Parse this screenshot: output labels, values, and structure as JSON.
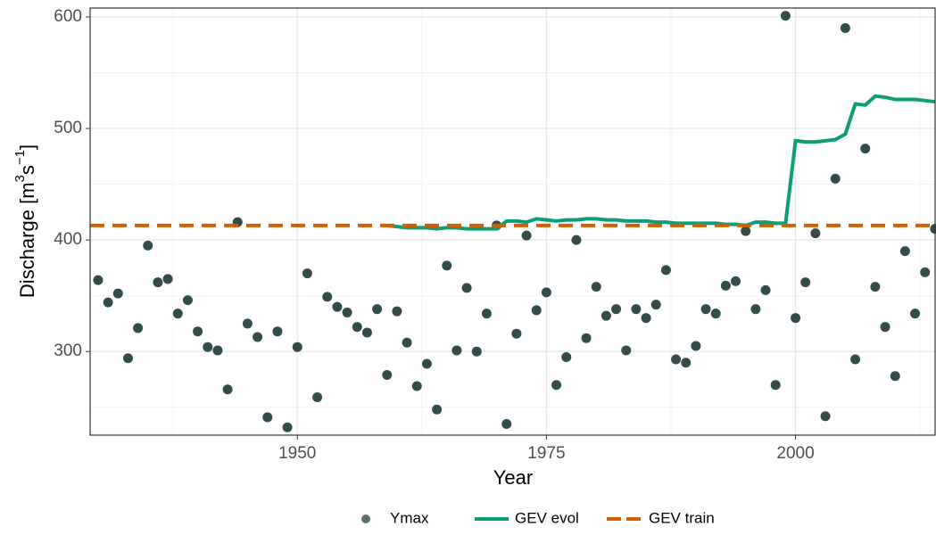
{
  "chart_data": {
    "type": "scatter_line",
    "x_label": "Year",
    "y_label": [
      "Discharge [m",
      "3",
      "s",
      "−1",
      "]"
    ],
    "xlim": [
      1929.2,
      2014.1
    ],
    "ylim": [
      225,
      608
    ],
    "xticks": [
      1950,
      1975,
      2000
    ],
    "yticks": [
      300,
      400,
      500,
      600
    ],
    "xminor": [
      1937.5,
      1962.5,
      1987.5,
      2012.5
    ],
    "yminor": [
      250,
      350,
      450,
      550
    ],
    "grid": true,
    "legend": "bottom",
    "series": [
      {
        "name": "Ymax",
        "kind": "points",
        "color": "#344b4b",
        "x": [
          1930,
          1931,
          1932,
          1933,
          1934,
          1935,
          1936,
          1937,
          1938,
          1939,
          1940,
          1941,
          1942,
          1943,
          1944,
          1945,
          1946,
          1947,
          1948,
          1949,
          1950,
          1951,
          1952,
          1953,
          1954,
          1955,
          1956,
          1957,
          1958,
          1959,
          1960,
          1961,
          1962,
          1963,
          1964,
          1965,
          1966,
          1967,
          1968,
          1969,
          1970,
          1971,
          1972,
          1973,
          1974,
          1975,
          1976,
          1977,
          1978,
          1979,
          1980,
          1981,
          1982,
          1983,
          1984,
          1985,
          1986,
          1987,
          1988,
          1989,
          1990,
          1991,
          1992,
          1993,
          1994,
          1995,
          1996,
          1997,
          1998,
          1999,
          2000,
          2001,
          2002,
          2003,
          2004,
          2005,
          2006,
          2007,
          2008,
          2009,
          2010,
          2011,
          2012,
          2013,
          2014
        ],
        "values": [
          364,
          344,
          352,
          294,
          321,
          395,
          362,
          365,
          334,
          346,
          318,
          304,
          301,
          266,
          416,
          325,
          313,
          241,
          318,
          232,
          304,
          370,
          259,
          349,
          340,
          335,
          322,
          317,
          338,
          279,
          336,
          308,
          269,
          289,
          248,
          377,
          301,
          357,
          300,
          334,
          413,
          235,
          316,
          404,
          337,
          353,
          270,
          295,
          400,
          312,
          358,
          332,
          338,
          301,
          338,
          330,
          342,
          373,
          293,
          290,
          305,
          338,
          334,
          359,
          363,
          408,
          338,
          355,
          270,
          601,
          330,
          362,
          406,
          242,
          455,
          590,
          293,
          482,
          358,
          322,
          278,
          390,
          334,
          371,
          410
        ]
      },
      {
        "name": "GEV evol",
        "kind": "line",
        "color": "#0c9e76",
        "x": [
          1959,
          1960,
          1961,
          1962,
          1963,
          1964,
          1965,
          1966,
          1967,
          1968,
          1969,
          1970,
          1971,
          1972,
          1973,
          1974,
          1975,
          1976,
          1977,
          1978,
          1979,
          1980,
          1981,
          1982,
          1983,
          1984,
          1985,
          1986,
          1987,
          1988,
          1989,
          1990,
          1991,
          1992,
          1993,
          1994,
          1995,
          1996,
          1997,
          1998,
          1999,
          2000,
          2001,
          2002,
          2003,
          2004,
          2005,
          2006,
          2007,
          2008,
          2009,
          2010,
          2011,
          2012,
          2013,
          2014
        ],
        "values": [
          413,
          412,
          411,
          411,
          411,
          410,
          411,
          411,
          410,
          410,
          410,
          410,
          417,
          417,
          416,
          419,
          418,
          417,
          418,
          418,
          419,
          419,
          418,
          418,
          417,
          417,
          417,
          416,
          416,
          415,
          415,
          415,
          415,
          415,
          414,
          414,
          413,
          416,
          416,
          415,
          415,
          489,
          488,
          488,
          489,
          490,
          495,
          522,
          521,
          529,
          528,
          526,
          526,
          526,
          525,
          524
        ]
      },
      {
        "name": "GEV train",
        "kind": "hline",
        "color": "#d55e00",
        "yintercept": 413
      }
    ]
  }
}
